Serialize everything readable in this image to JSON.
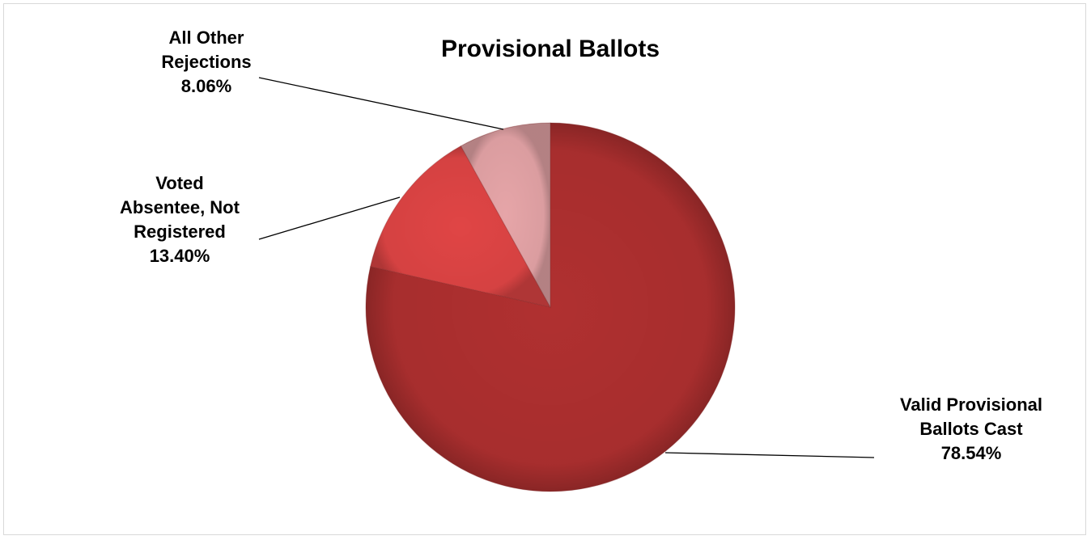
{
  "chart_data": {
    "type": "pie",
    "title": "Provisional Ballots",
    "slices": [
      {
        "label_lines": [
          "Valid Provisional",
          "Ballots Cast"
        ],
        "percent_text": "78.54%",
        "value": 78.54,
        "color": "#b03030"
      },
      {
        "label_lines": [
          "Voted",
          "Absentee, Not",
          "Registered"
        ],
        "percent_text": "13.40%",
        "value": 13.4,
        "color": "#e04545"
      },
      {
        "label_lines": [
          "All Other",
          "Rejections"
        ],
        "percent_text": "8.06%",
        "value": 8.06,
        "color": "#e6a5a8"
      }
    ],
    "legend": "none",
    "data_labels": "outside with leader lines"
  }
}
